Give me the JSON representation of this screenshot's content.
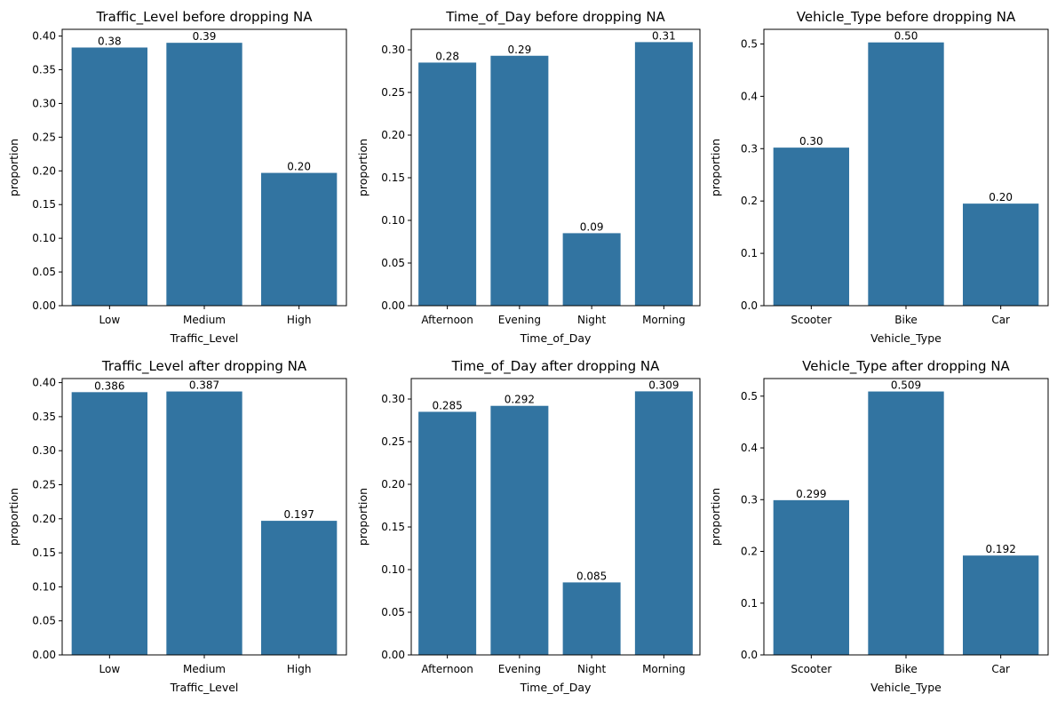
{
  "chart_data": [
    {
      "type": "bar",
      "title": "Traffic_Level before dropping NA",
      "xlabel": "Traffic_Level",
      "ylabel": "proportion",
      "categories": [
        "Low",
        "Medium",
        "High"
      ],
      "values": [
        0.383,
        0.39,
        0.197
      ],
      "value_labels": [
        "0.38",
        "0.39",
        "0.20"
      ],
      "ylim": [
        0,
        0.41
      ],
      "yticks": [
        0,
        0.05,
        0.1,
        0.15,
        0.2,
        0.25,
        0.3,
        0.35,
        0.4
      ],
      "ytick_labels": [
        "0.00",
        "0.05",
        "0.10",
        "0.15",
        "0.20",
        "0.25",
        "0.30",
        "0.35",
        "0.40"
      ],
      "bar_color": "#3274a1",
      "grid": false
    },
    {
      "type": "bar",
      "title": "Time_of_Day before dropping NA",
      "xlabel": "Time_of_Day",
      "ylabel": "proportion",
      "categories": [
        "Afternoon",
        "Evening",
        "Night",
        "Morning"
      ],
      "values": [
        0.285,
        0.293,
        0.085,
        0.309
      ],
      "value_labels": [
        "0.28",
        "0.29",
        "0.09",
        "0.31"
      ],
      "ylim": [
        0,
        0.324
      ],
      "yticks": [
        0,
        0.05,
        0.1,
        0.15,
        0.2,
        0.25,
        0.3
      ],
      "ytick_labels": [
        "0.00",
        "0.05",
        "0.10",
        "0.15",
        "0.20",
        "0.25",
        "0.30"
      ],
      "bar_color": "#3274a1",
      "grid": false
    },
    {
      "type": "bar",
      "title": "Vehicle_Type before dropping NA",
      "xlabel": "Vehicle_Type",
      "ylabel": "proportion",
      "categories": [
        "Scooter",
        "Bike",
        "Car"
      ],
      "values": [
        0.302,
        0.503,
        0.195
      ],
      "value_labels": [
        "0.30",
        "0.50",
        "0.20"
      ],
      "ylim": [
        0,
        0.528
      ],
      "yticks": [
        0,
        0.1,
        0.2,
        0.3,
        0.4,
        0.5
      ],
      "ytick_labels": [
        "0.0",
        "0.1",
        "0.2",
        "0.3",
        "0.4",
        "0.5"
      ],
      "bar_color": "#3274a1",
      "grid": false
    },
    {
      "type": "bar",
      "title": "Traffic_Level after dropping NA",
      "xlabel": "Traffic_Level",
      "ylabel": "proportion",
      "categories": [
        "Low",
        "Medium",
        "High"
      ],
      "values": [
        0.386,
        0.387,
        0.197
      ],
      "value_labels": [
        "0.386",
        "0.387",
        "0.197"
      ],
      "ylim": [
        0,
        0.406
      ],
      "yticks": [
        0,
        0.05,
        0.1,
        0.15,
        0.2,
        0.25,
        0.3,
        0.35,
        0.4
      ],
      "ytick_labels": [
        "0.00",
        "0.05",
        "0.10",
        "0.15",
        "0.20",
        "0.25",
        "0.30",
        "0.35",
        "0.40"
      ],
      "bar_color": "#3274a1",
      "grid": false
    },
    {
      "type": "bar",
      "title": "Time_of_Day after dropping NA",
      "xlabel": "Time_of_Day",
      "ylabel": "proportion",
      "categories": [
        "Afternoon",
        "Evening",
        "Night",
        "Morning"
      ],
      "values": [
        0.285,
        0.292,
        0.085,
        0.309
      ],
      "value_labels": [
        "0.285",
        "0.292",
        "0.085",
        "0.309"
      ],
      "ylim": [
        0,
        0.324
      ],
      "yticks": [
        0,
        0.05,
        0.1,
        0.15,
        0.2,
        0.25,
        0.3
      ],
      "ytick_labels": [
        "0.00",
        "0.05",
        "0.10",
        "0.15",
        "0.20",
        "0.25",
        "0.30"
      ],
      "bar_color": "#3274a1",
      "grid": false
    },
    {
      "type": "bar",
      "title": "Vehicle_Type after dropping NA",
      "xlabel": "Vehicle_Type",
      "ylabel": "proportion",
      "categories": [
        "Scooter",
        "Bike",
        "Car"
      ],
      "values": [
        0.299,
        0.509,
        0.192
      ],
      "value_labels": [
        "0.299",
        "0.509",
        "0.192"
      ],
      "ylim": [
        0,
        0.534
      ],
      "yticks": [
        0,
        0.1,
        0.2,
        0.3,
        0.4,
        0.5
      ],
      "ytick_labels": [
        "0.0",
        "0.1",
        "0.2",
        "0.3",
        "0.4",
        "0.5"
      ],
      "bar_color": "#3274a1",
      "grid": false
    }
  ]
}
